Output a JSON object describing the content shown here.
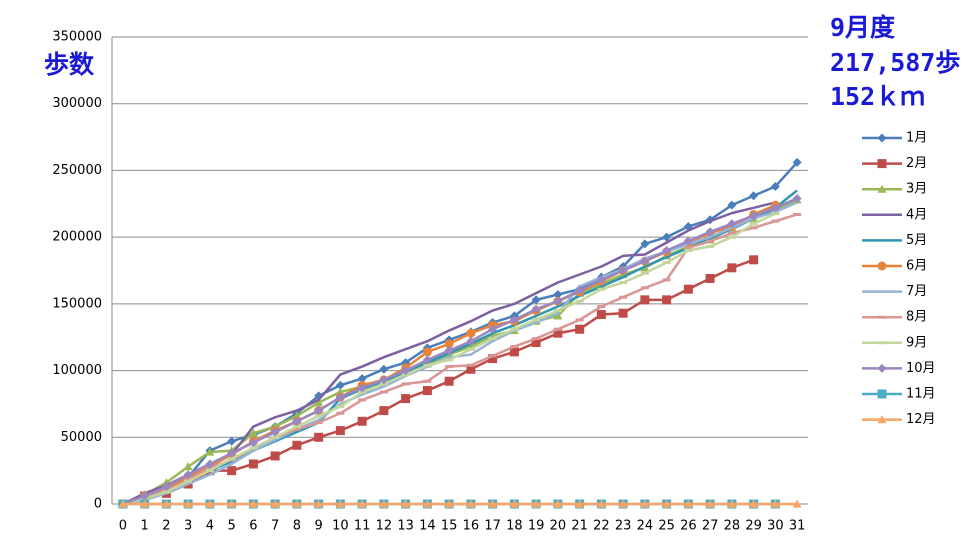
{
  "chart_data": {
    "type": "line",
    "ylabel": "歩数",
    "annotations": [
      "9月度",
      "217,587歩",
      "152ｋｍ"
    ],
    "categories": [
      0,
      1,
      2,
      3,
      4,
      5,
      6,
      7,
      8,
      9,
      10,
      11,
      12,
      13,
      14,
      15,
      16,
      17,
      18,
      19,
      20,
      21,
      22,
      23,
      24,
      25,
      26,
      27,
      28,
      29,
      30,
      31
    ],
    "ylim": [
      0,
      350000
    ],
    "yticks": [
      0,
      50000,
      100000,
      150000,
      200000,
      250000,
      300000,
      350000
    ],
    "grid": true,
    "legend": "right",
    "series": [
      {
        "name": "1月",
        "color": "#4a7ebb",
        "marker": "diamond",
        "values": [
          0,
          5000,
          12000,
          20000,
          40000,
          47000,
          52000,
          58000,
          68000,
          81000,
          89000,
          94000,
          101000,
          106000,
          117000,
          123000,
          129000,
          136000,
          141000,
          153000,
          157000,
          161000,
          170000,
          178000,
          195000,
          200000,
          208000,
          213000,
          224000,
          231000,
          238000,
          256000
        ]
      },
      {
        "name": "2月",
        "color": "#be4b48",
        "marker": "square",
        "values": [
          0,
          6000,
          8000,
          15000,
          25000,
          25000,
          30000,
          36000,
          44000,
          50000,
          55000,
          62000,
          70000,
          79000,
          85000,
          92000,
          101000,
          109000,
          114000,
          121000,
          128000,
          131000,
          142000,
          143000,
          153000,
          153000,
          161000,
          169000,
          177000,
          183000,
          null,
          null
        ]
      },
      {
        "name": "3月",
        "color": "#98b954",
        "marker": "triangle",
        "values": [
          0,
          7000,
          16000,
          28000,
          39000,
          40000,
          53000,
          58000,
          66000,
          76000,
          84000,
          88000,
          91000,
          100000,
          105000,
          112000,
          118000,
          126000,
          130000,
          137000,
          141000,
          158000,
          165000,
          172000,
          177000,
          186000,
          193000,
          198000,
          207000,
          214000,
          220000,
          228000
        ]
      },
      {
        "name": "4月",
        "color": "#7d60a0",
        "marker": "none",
        "values": [
          0,
          8000,
          14000,
          22000,
          30000,
          37000,
          58000,
          65000,
          70000,
          78000,
          97000,
          103000,
          110000,
          116000,
          122000,
          130000,
          137000,
          145000,
          150000,
          158000,
          166000,
          172000,
          178000,
          186000,
          187000,
          196000,
          205000,
          212000,
          218000,
          222000,
          226000,
          null
        ]
      },
      {
        "name": "5月",
        "color": "#2e95b3",
        "marker": "none",
        "values": [
          0,
          4000,
          10000,
          18000,
          25000,
          32000,
          40000,
          47000,
          54000,
          61000,
          79000,
          86000,
          92000,
          99000,
          106000,
          113000,
          120000,
          128000,
          134000,
          141000,
          148000,
          156000,
          163000,
          170000,
          178000,
          185000,
          192000,
          199000,
          206000,
          214000,
          222000,
          235000
        ]
      },
      {
        "name": "6月",
        "color": "#e8833a",
        "marker": "circle",
        "values": [
          0,
          6000,
          12000,
          20000,
          28000,
          37000,
          47000,
          55000,
          62000,
          70000,
          80000,
          89000,
          93000,
          102000,
          114000,
          120000,
          128000,
          134000,
          137000,
          145000,
          152000,
          159000,
          167000,
          175000,
          182000,
          189000,
          196000,
          203000,
          208000,
          217000,
          224000,
          null
        ]
      },
      {
        "name": "7月",
        "color": "#95b3d7",
        "marker": "none",
        "values": [
          0,
          3000,
          8000,
          15000,
          22000,
          30000,
          40000,
          48000,
          56000,
          63000,
          75000,
          82000,
          88000,
          96000,
          103000,
          110000,
          112000,
          122000,
          130000,
          136000,
          143000,
          163000,
          170000,
          176000,
          184000,
          189000,
          195000,
          200000,
          207000,
          214000,
          219000,
          226000
        ]
      },
      {
        "name": "8月",
        "color": "#d99694",
        "marker": "dash",
        "values": [
          0,
          5000,
          10000,
          18000,
          27000,
          33000,
          42000,
          50000,
          56000,
          61000,
          68000,
          78000,
          84000,
          90000,
          92000,
          103000,
          104000,
          111000,
          118000,
          124000,
          131000,
          138000,
          148000,
          155000,
          162000,
          168000,
          192000,
          197000,
          203000,
          207000,
          212000,
          217000
        ]
      },
      {
        "name": "9月",
        "color": "#c3d69b",
        "marker": "dash",
        "values": [
          0,
          4000,
          9000,
          17000,
          25000,
          34000,
          42000,
          50000,
          58000,
          66000,
          73000,
          84000,
          90000,
          97000,
          104000,
          108000,
          116000,
          124000,
          131000,
          138000,
          145000,
          152000,
          161000,
          166000,
          173000,
          181000,
          190000,
          193000,
          200000,
          210000,
          217587,
          null
        ]
      },
      {
        "name": "10月",
        "color": "#9a86c0",
        "marker": "diamond",
        "values": [
          0,
          6000,
          13000,
          22000,
          30000,
          38000,
          46000,
          54000,
          62000,
          70000,
          80000,
          87000,
          93000,
          100000,
          108000,
          115000,
          122000,
          131000,
          138000,
          146000,
          152000,
          160000,
          168000,
          175000,
          182000,
          190000,
          197000,
          204000,
          210000,
          216000,
          222000,
          229000
        ]
      },
      {
        "name": "11月",
        "color": "#4bacc6",
        "marker": "square",
        "values": [
          0,
          0,
          0,
          0,
          0,
          0,
          0,
          0,
          0,
          0,
          0,
          0,
          0,
          0,
          0,
          0,
          0,
          0,
          0,
          0,
          0,
          0,
          0,
          0,
          0,
          0,
          0,
          0,
          0,
          0,
          0,
          null
        ]
      },
      {
        "name": "12月",
        "color": "#f8a565",
        "marker": "triangle",
        "values": [
          0,
          0,
          0,
          0,
          0,
          0,
          0,
          0,
          0,
          0,
          0,
          0,
          0,
          0,
          0,
          0,
          0,
          0,
          0,
          0,
          0,
          0,
          0,
          0,
          0,
          0,
          0,
          0,
          0,
          0,
          0,
          0
        ]
      }
    ]
  }
}
